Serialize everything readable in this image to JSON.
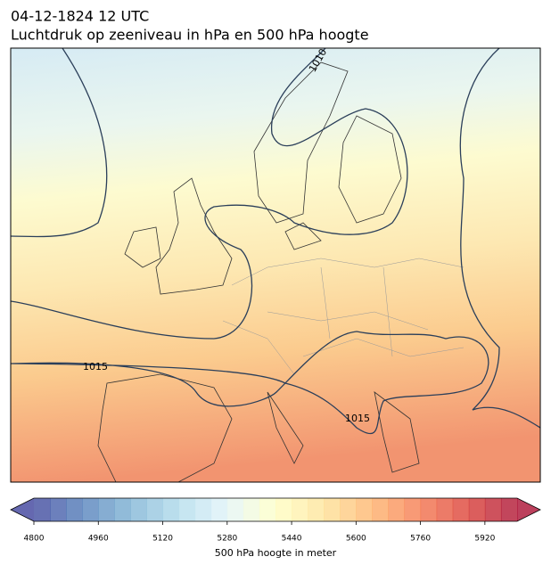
{
  "header": {
    "date": "04-12-1824 12 UTC",
    "title": "Luchtdruk op zeeniveau in hPa en 500 hPa hoogte"
  },
  "contour_labels": [
    1015,
    1010,
    1015
  ],
  "colorbar": {
    "label": "500 hPa hoogte in meter",
    "lim": [
      4800,
      6000
    ],
    "step": 40,
    "ticks": [
      4800,
      4960,
      5120,
      5280,
      5440,
      5600,
      5760,
      5920
    ],
    "colors": [
      "#313695",
      "#4575b4",
      "#74add1",
      "#abd9e9",
      "#e0f3f8",
      "#ffffbf",
      "#fee090",
      "#fdae61",
      "#f46d43",
      "#d73027",
      "#a50026"
    ]
  }
}
